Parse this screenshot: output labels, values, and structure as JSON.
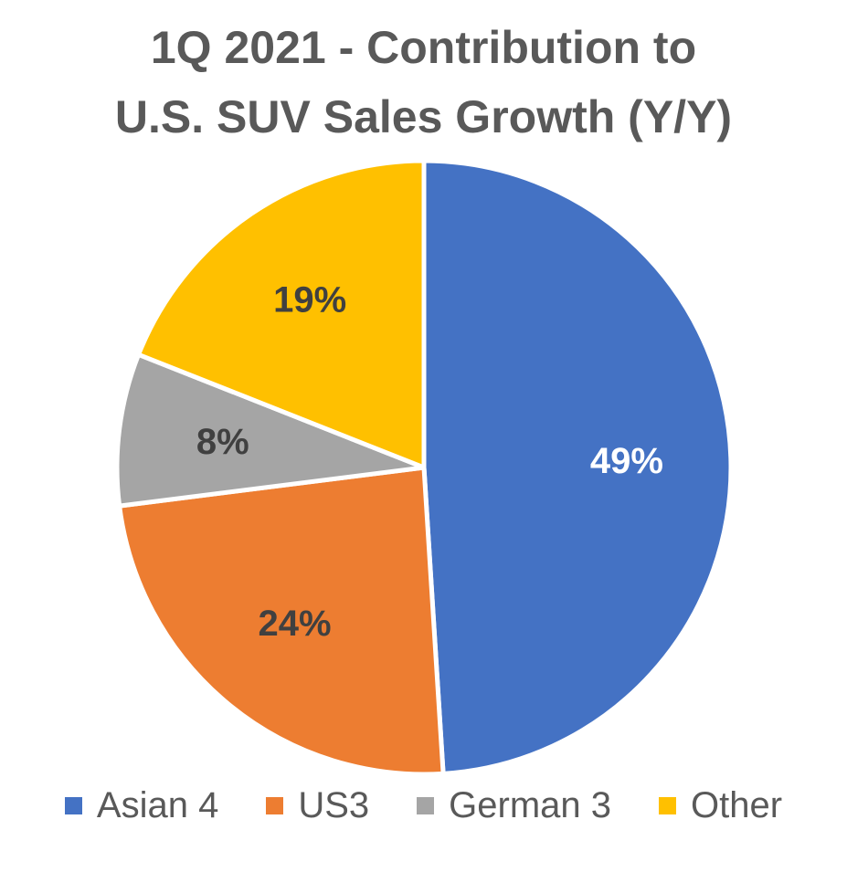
{
  "chart_data": {
    "type": "pie",
    "title": "1Q 2021 - Contribution to U.S. SUV Sales Growth (Y/Y)",
    "title_lines": [
      "1Q 2021 - Contribution to",
      "U.S. SUV Sales Growth (Y/Y)"
    ],
    "categories": [
      "Asian 4",
      "US3",
      "German 3",
      "Other"
    ],
    "values": [
      49,
      24,
      8,
      19
    ],
    "data_labels": [
      "49%",
      "24%",
      "8%",
      "19%"
    ],
    "colors": [
      "#4472C4",
      "#ED7D31",
      "#A5A5A5",
      "#FFC000"
    ],
    "label_colors": [
      "#FFFFFF",
      "#404040",
      "#404040",
      "#404040"
    ],
    "legend_position": "bottom",
    "start": "12 o'clock, clockwise"
  }
}
